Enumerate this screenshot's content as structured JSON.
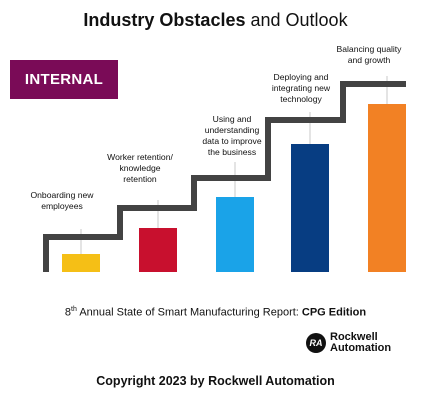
{
  "header": {
    "title_bold": "Industry Obstacles",
    "title_rest": "and Outlook"
  },
  "badge": {
    "label": "INTERNAL"
  },
  "chart_data": {
    "type": "bar",
    "categories": [
      "Onboarding new employees",
      "Worker retention/ knowledge retention",
      "Using and understanding data to improve the business",
      "Deploying and integrating new technology",
      "Balancing quality and growth"
    ],
    "values": [
      1,
      2,
      3,
      4,
      5
    ],
    "bar_colors": [
      "#f5bf16",
      "#c8102e",
      "#1aa3e8",
      "#073d82",
      "#f28124"
    ],
    "line_color": "#434343",
    "labels": [
      [
        "Onboarding new",
        "employees"
      ],
      [
        "Worker retention/",
        "knowledge",
        "retention"
      ],
      [
        "Using and",
        "understanding",
        "data to improve",
        "the business"
      ],
      [
        "Deploying and",
        "integrating new",
        "technology"
      ],
      [
        "Balancing quality",
        "and growth"
      ]
    ]
  },
  "report": {
    "ordinal": "8",
    "ordinal_suffix": "th",
    "text": " Annual State of Smart Manufacturing Report: ",
    "edition": "CPG Edition"
  },
  "logo": {
    "mark": "RA",
    "line1": "Rockwell",
    "line2": "Automation"
  },
  "footer": {
    "copyright": "Copyright 2023 by Rockwell Automation"
  }
}
